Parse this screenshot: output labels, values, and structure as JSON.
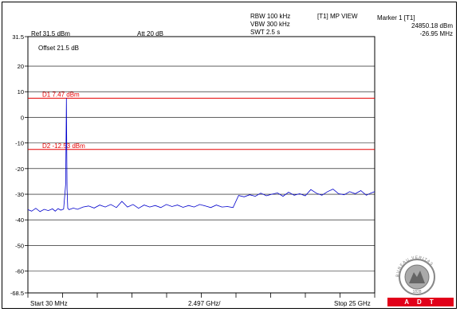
{
  "header": {
    "ref_level": "Ref 31.5 dBm",
    "attenuation": "Att  20 dB",
    "rbw": "RBW 100 kHz",
    "vbw": "VBW 300 kHz",
    "swt": "SWT 2.5 s",
    "trace_mode": "[T1] MP VIEW",
    "marker_title": "Marker 1 [T1]",
    "marker_level": "24850.18 dBm",
    "marker_freq": "-26.95 MHz"
  },
  "offset_label": "Offset 21.5 dB",
  "footer": {
    "start": "Start 30 MHz",
    "center": "2.497 GHz/",
    "stop": "Stop 25 GHz"
  },
  "logo": {
    "ring_text": "BUREAU VERITAS",
    "year": "1828",
    "banner": "ADT"
  },
  "colors": {
    "trace": "#0000cc",
    "display_line": "#e60000",
    "grid": "#000000",
    "banner": "#e2001a"
  },
  "chart_data": {
    "type": "line",
    "title": "",
    "xlabel": "",
    "ylabel": "",
    "x_unit": "GHz",
    "xlim": [
      0.03,
      25.0
    ],
    "ylim": [
      -68.5,
      31.5
    ],
    "y_ticks": [
      31.5,
      20,
      10,
      0,
      -10,
      -20,
      -30,
      -40,
      -50,
      -60,
      -68.5
    ],
    "y_tick_labels": [
      "31.5",
      "20",
      "10",
      "0",
      "-10",
      "-20",
      "-30",
      "-40",
      "-50",
      "-60",
      "-68.5"
    ],
    "x_divisions": 10,
    "grid": true,
    "display_lines": [
      {
        "name": "D1",
        "label": "D1  7.47 dBm",
        "value": 7.47
      },
      {
        "name": "D2",
        "label": "D2  -12.53 dBm",
        "value": -12.53
      }
    ],
    "series": [
      {
        "x": [
          0.03,
          0.3,
          0.6,
          0.9,
          1.2,
          1.5,
          1.8,
          2.0,
          2.2,
          2.4,
          2.6,
          2.75,
          2.8,
          2.85,
          2.9,
          3.0,
          3.3,
          3.6,
          4.0,
          4.4,
          4.8,
          5.2,
          5.6,
          6.0,
          6.4,
          6.8,
          7.2,
          7.6,
          8.0,
          8.4,
          8.8,
          9.2,
          9.6,
          10.0,
          10.4,
          10.8,
          11.2,
          11.6,
          12.0,
          12.4,
          12.8,
          13.2,
          13.6,
          14.0,
          14.4,
          14.8,
          15.2,
          15.6,
          16.0,
          16.4,
          16.8,
          17.2,
          17.6,
          18.0,
          18.4,
          18.8,
          19.2,
          19.6,
          20.0,
          20.4,
          20.8,
          21.2,
          21.6,
          22.0,
          22.4,
          22.8,
          23.2,
          23.6,
          24.0,
          24.4,
          24.7,
          25.0
        ],
        "values": [
          -36.0,
          -36.6,
          -35.5,
          -36.8,
          -35.9,
          -36.4,
          -35.7,
          -36.6,
          -35.6,
          -36.2,
          -35.8,
          -26.0,
          7.47,
          -28.0,
          -35.5,
          -36.0,
          -35.4,
          -35.9,
          -35.0,
          -34.6,
          -35.4,
          -34.2,
          -35.0,
          -34.0,
          -35.2,
          -32.8,
          -35.0,
          -34.0,
          -35.5,
          -34.2,
          -35.0,
          -34.4,
          -35.2,
          -34.0,
          -34.8,
          -34.2,
          -35.1,
          -34.4,
          -35.0,
          -34.0,
          -34.6,
          -35.2,
          -34.2,
          -35.0,
          -34.8,
          -35.2,
          -30.5,
          -31.0,
          -30.2,
          -30.8,
          -29.6,
          -30.6,
          -30.0,
          -29.5,
          -30.8,
          -29.2,
          -30.4,
          -29.8,
          -30.6,
          -28.2,
          -29.6,
          -30.4,
          -29.0,
          -28.0,
          -29.8,
          -30.2,
          -29.0,
          -29.8,
          -28.6,
          -30.4,
          -29.6,
          -29.0
        ]
      }
    ]
  }
}
